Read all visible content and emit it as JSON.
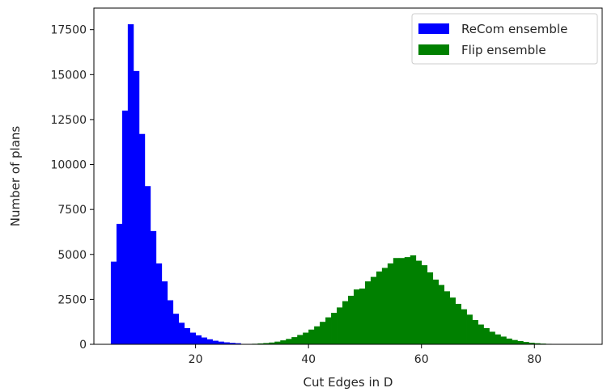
{
  "chart_data": {
    "type": "bar",
    "title": "",
    "xlabel": "Cut Edges in D",
    "ylabel": "Number of plans",
    "xlim": [
      2,
      92
    ],
    "ylim": [
      0,
      18700
    ],
    "xticks": [
      20,
      40,
      60,
      80
    ],
    "yticks": [
      0,
      2500,
      5000,
      7500,
      10000,
      12500,
      15000,
      17500
    ],
    "grid": false,
    "legend": {
      "position": "top-right"
    },
    "bin_width": 1,
    "series": [
      {
        "name": "ReCom ensemble",
        "color": "#0000ff",
        "bins": [
          [
            5,
            4600
          ],
          [
            6,
            6700
          ],
          [
            7,
            13000
          ],
          [
            8,
            17800
          ],
          [
            9,
            15200
          ],
          [
            10,
            11700
          ],
          [
            11,
            8800
          ],
          [
            12,
            6300
          ],
          [
            13,
            4500
          ],
          [
            14,
            3500
          ],
          [
            15,
            2450
          ],
          [
            16,
            1700
          ],
          [
            17,
            1200
          ],
          [
            18,
            900
          ],
          [
            19,
            650
          ],
          [
            20,
            500
          ],
          [
            21,
            380
          ],
          [
            22,
            280
          ],
          [
            23,
            200
          ],
          [
            24,
            150
          ],
          [
            25,
            110
          ],
          [
            26,
            80
          ],
          [
            27,
            60
          ]
        ]
      },
      {
        "name": "Flip ensemble",
        "color": "#008000",
        "bins": [
          [
            30,
            30
          ],
          [
            31,
            50
          ],
          [
            32,
            70
          ],
          [
            33,
            100
          ],
          [
            34,
            150
          ],
          [
            35,
            220
          ],
          [
            36,
            300
          ],
          [
            37,
            400
          ],
          [
            38,
            520
          ],
          [
            39,
            650
          ],
          [
            40,
            820
          ],
          [
            41,
            1000
          ],
          [
            42,
            1250
          ],
          [
            43,
            1500
          ],
          [
            44,
            1750
          ],
          [
            45,
            2050
          ],
          [
            46,
            2400
          ],
          [
            47,
            2700
          ],
          [
            48,
            3050
          ],
          [
            49,
            3100
          ],
          [
            50,
            3500
          ],
          [
            51,
            3750
          ],
          [
            52,
            4050
          ],
          [
            53,
            4250
          ],
          [
            54,
            4500
          ],
          [
            55,
            4800
          ],
          [
            56,
            4800
          ],
          [
            57,
            4850
          ],
          [
            58,
            4950
          ],
          [
            59,
            4650
          ],
          [
            60,
            4400
          ],
          [
            61,
            4000
          ],
          [
            62,
            3600
          ],
          [
            63,
            3300
          ],
          [
            64,
            2950
          ],
          [
            65,
            2600
          ],
          [
            66,
            2250
          ],
          [
            67,
            1950
          ],
          [
            68,
            1650
          ],
          [
            69,
            1350
          ],
          [
            70,
            1100
          ],
          [
            71,
            900
          ],
          [
            72,
            700
          ],
          [
            73,
            550
          ],
          [
            74,
            430
          ],
          [
            75,
            320
          ],
          [
            76,
            240
          ],
          [
            77,
            180
          ],
          [
            78,
            130
          ],
          [
            79,
            90
          ],
          [
            80,
            60
          ],
          [
            81,
            40
          ],
          [
            82,
            25
          ]
        ]
      }
    ]
  }
}
